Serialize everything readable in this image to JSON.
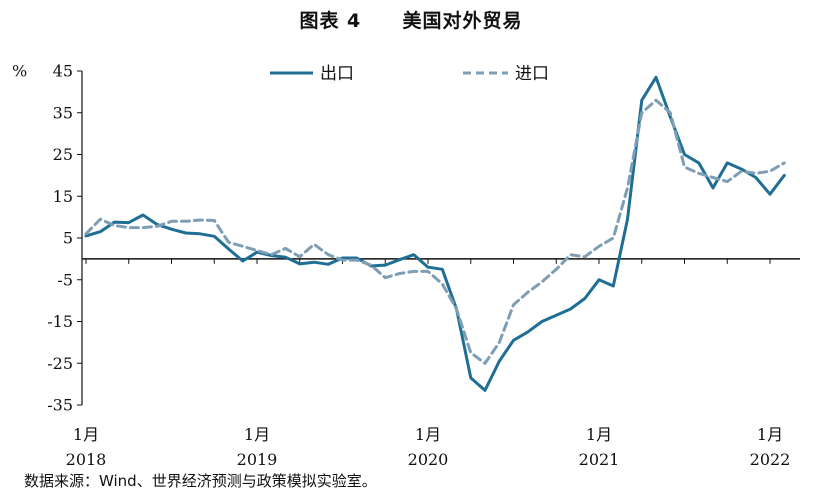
{
  "figure": {
    "number": "图表 4",
    "title": "美国对外贸易",
    "source": "数据来源：Wind、世界经济预测与政策模拟实验室。"
  },
  "chart_data": {
    "type": "line",
    "ylabel": "%",
    "ylim": [
      -35,
      45
    ],
    "yticks": [
      45,
      35,
      25,
      15,
      5,
      -5,
      -15,
      -25,
      -35
    ],
    "x_label_months": [
      "1月",
      "1月",
      "1月",
      "1月",
      "1月"
    ],
    "x_label_years": [
      "2018",
      "2019",
      "2020",
      "2021",
      "2022"
    ],
    "x": [
      "2018-01",
      "2018-02",
      "2018-03",
      "2018-04",
      "2018-05",
      "2018-06",
      "2018-07",
      "2018-08",
      "2018-09",
      "2018-10",
      "2018-11",
      "2018-12",
      "2019-01",
      "2019-02",
      "2019-03",
      "2019-04",
      "2019-05",
      "2019-06",
      "2019-07",
      "2019-08",
      "2019-09",
      "2019-10",
      "2019-11",
      "2019-12",
      "2020-01",
      "2020-02",
      "2020-03",
      "2020-04",
      "2020-05",
      "2020-06",
      "2020-07",
      "2020-08",
      "2020-09",
      "2020-10",
      "2020-11",
      "2020-12",
      "2021-01",
      "2021-02",
      "2021-03",
      "2021-04",
      "2021-05",
      "2021-06",
      "2021-07",
      "2021-08",
      "2021-09",
      "2021-10",
      "2021-11",
      "2021-12",
      "2022-01",
      "2022-02"
    ],
    "legend_position": "top-center",
    "series": [
      {
        "name": "出口",
        "color": "#1f6e94",
        "style": "solid",
        "values": [
          5.5,
          6.5,
          8.8,
          8.7,
          10.5,
          8.2,
          7.1,
          6.2,
          6.0,
          5.4,
          2.4,
          -0.5,
          1.6,
          0.8,
          0.4,
          -1.2,
          -0.8,
          -1.3,
          0.2,
          0.2,
          -1.7,
          -1.5,
          -0.2,
          1.0,
          -2.0,
          -2.5,
          -12.0,
          -28.5,
          -31.5,
          -24.5,
          -19.5,
          -17.5,
          -15.0,
          -13.5,
          -12.0,
          -9.5,
          -5.0,
          -6.5,
          9.5,
          38.0,
          43.5,
          34.0,
          25.0,
          23.0,
          17.0,
          23.0,
          21.5,
          19.5,
          15.5,
          20.0
        ]
      },
      {
        "name": "进口",
        "color": "#7d9eb5",
        "style": "dashed",
        "values": [
          6.0,
          9.5,
          8.0,
          7.5,
          7.5,
          7.8,
          9.0,
          9.0,
          9.3,
          9.2,
          4.0,
          3.0,
          2.0,
          1.0,
          2.5,
          0.5,
          3.5,
          1.0,
          -0.3,
          -0.3,
          -1.5,
          -4.5,
          -3.5,
          -3.0,
          -3.0,
          -6.0,
          -12.0,
          -22.5,
          -25.0,
          -20.0,
          -11.0,
          -8.0,
          -5.5,
          -2.5,
          1.0,
          0.5,
          3.0,
          5.0,
          17.0,
          35.0,
          38.0,
          35.0,
          22.0,
          20.5,
          19.5,
          18.5,
          21.0,
          20.5,
          21.0,
          23.0
        ]
      }
    ]
  }
}
